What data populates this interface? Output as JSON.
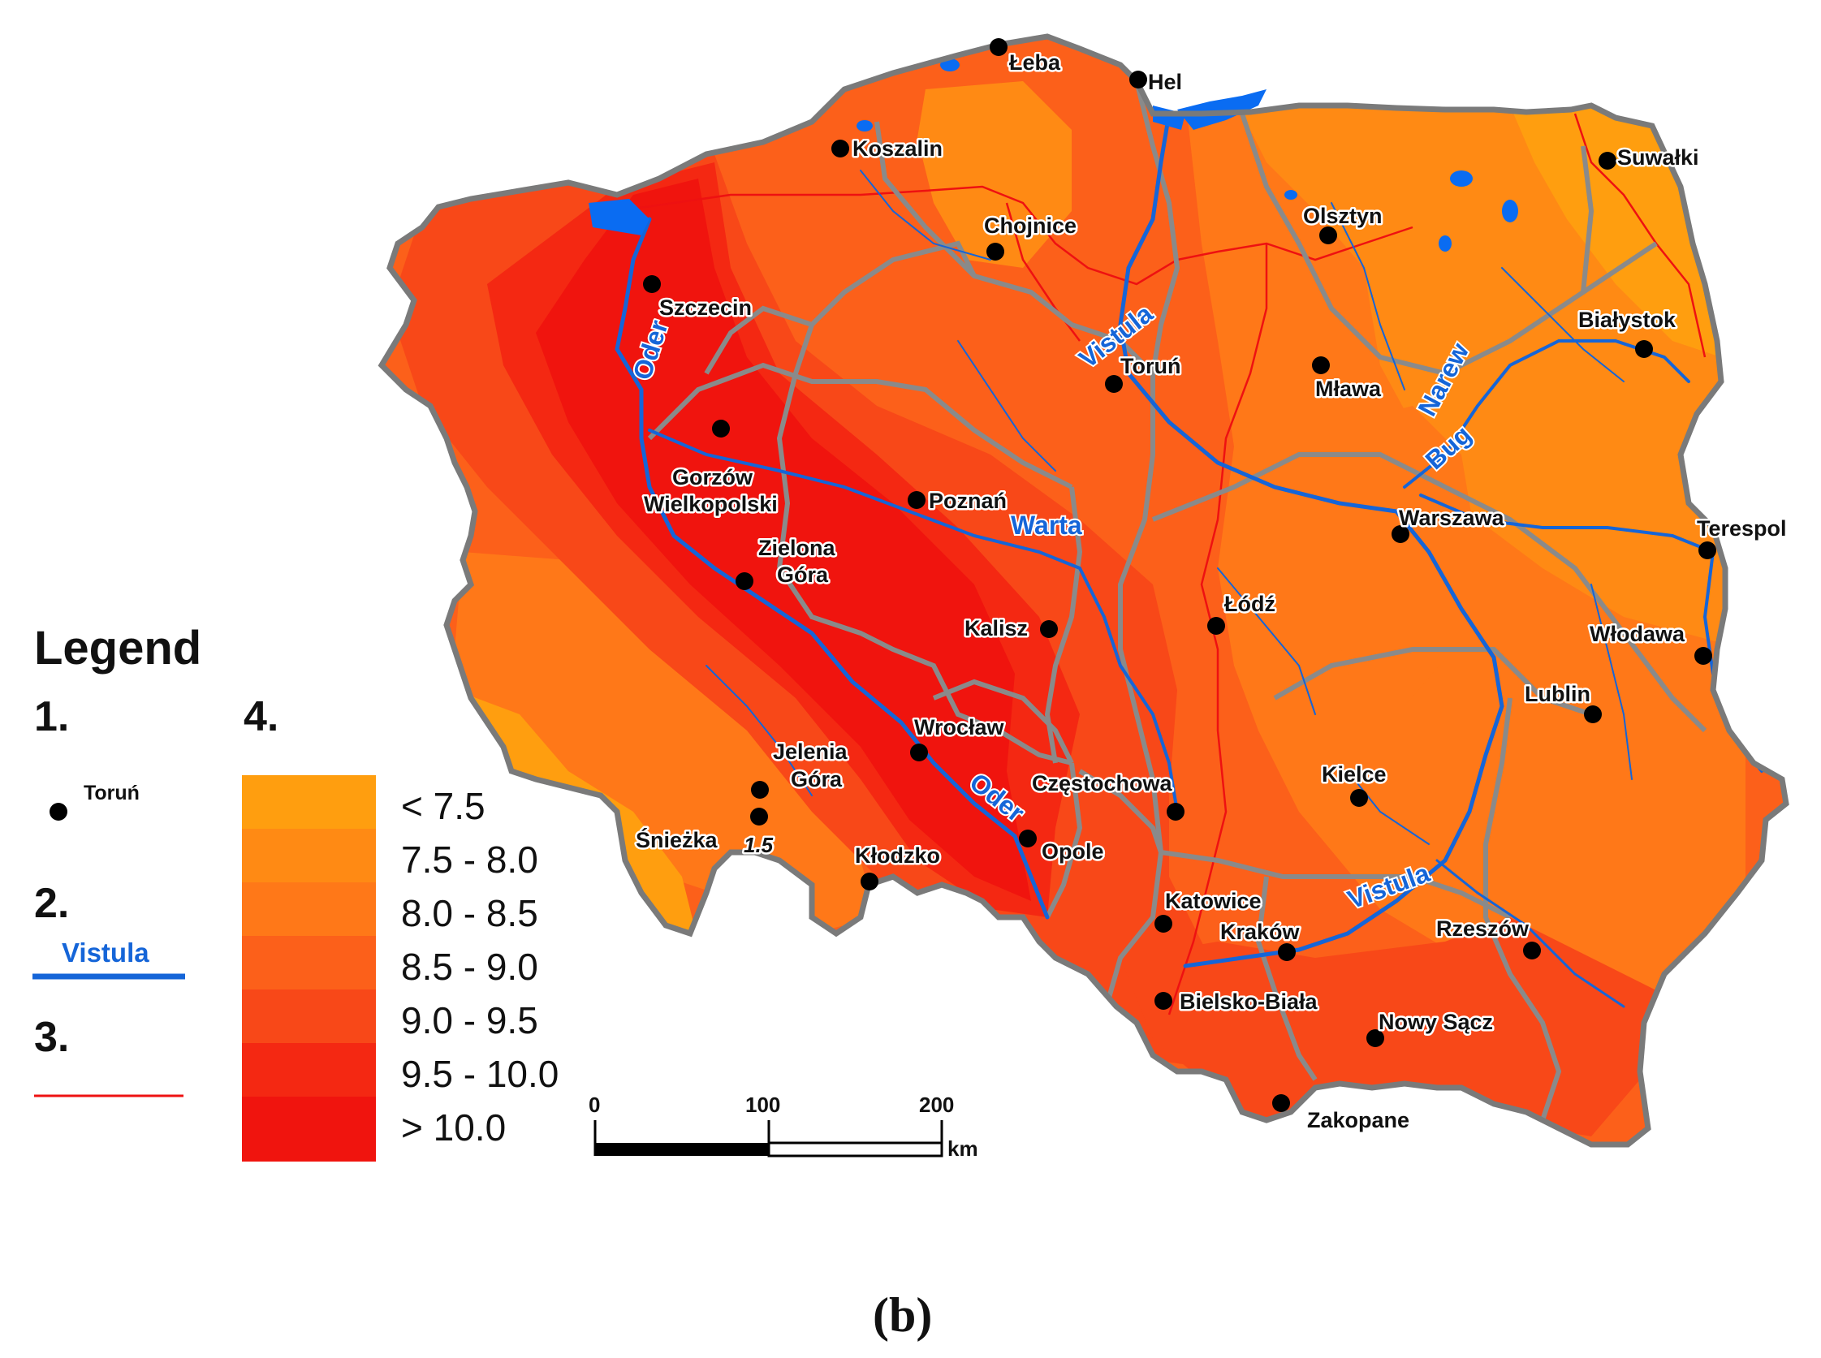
{
  "palette": {
    "lt_7_5": "#ff9e0f",
    "c_7_5_8_0": "#ff8a14",
    "c_8_0_8_5": "#ff7818",
    "c_8_5_9_0": "#fc601a",
    "c_9_0_9_5": "#f84818",
    "c_9_5_10_0": "#f42812",
    "gt_10_0": "#f0140e",
    "river": "#1565d8",
    "water": "#0a6cf2",
    "voivodeship_border": "#808080",
    "catchment_border": "#ee1111",
    "country_border": "#7a7a7a"
  },
  "cities": [
    {
      "name": "Łeba"
    },
    {
      "name": "Hel"
    },
    {
      "name": "Koszalin"
    },
    {
      "name": "Suwałki"
    },
    {
      "name": "Chojnice"
    },
    {
      "name": "Olsztyn"
    },
    {
      "name": "Szczecin"
    },
    {
      "name": "Białystok"
    },
    {
      "name": "Toruń"
    },
    {
      "name": "Mława"
    },
    {
      "name": "Gorzów Wielkopolski"
    },
    {
      "name": "Poznań"
    },
    {
      "name": "Warszawa"
    },
    {
      "name": "Terespol"
    },
    {
      "name": "Zielona Góra"
    },
    {
      "name": "Łódź"
    },
    {
      "name": "Kalisz"
    },
    {
      "name": "Włodawa"
    },
    {
      "name": "Lublin"
    },
    {
      "name": "Wrocław"
    },
    {
      "name": "Jelenia Góra"
    },
    {
      "name": "Częstochowa"
    },
    {
      "name": "Kielce"
    },
    {
      "name": "Śnieżka"
    },
    {
      "name": "Opole"
    },
    {
      "name": "Kłodzko"
    },
    {
      "name": "Katowice"
    },
    {
      "name": "Kraków"
    },
    {
      "name": "Rzeszów"
    },
    {
      "name": "Bielsko-Biała"
    },
    {
      "name": "Nowy Sącz"
    },
    {
      "name": "Zakopane"
    }
  ],
  "snieżka_value": "1.5",
  "rivers": [
    {
      "name": "Oder"
    },
    {
      "name": "Vistula"
    },
    {
      "name": "Narew"
    },
    {
      "name": "Bug"
    },
    {
      "name": "Warta"
    },
    {
      "name": "Oder"
    },
    {
      "name": "Vistula"
    }
  ],
  "legend": {
    "title": "Legend",
    "item1_number": "1.",
    "item1_example": "Toruń",
    "item2_number": "2.",
    "item2_example": "Vistula",
    "item3_number": "3.",
    "item4_number": "4.",
    "classes": [
      "< 7.5",
      "7.5 - 8.0",
      "8.0 - 8.5",
      "8.5 - 9.0",
      "9.0 - 9.5",
      "9.5 - 10.0",
      "> 10.0"
    ]
  },
  "scale_bar": {
    "labels": [
      "0",
      "100",
      "200"
    ],
    "unit": "km"
  },
  "caption": "(b)"
}
